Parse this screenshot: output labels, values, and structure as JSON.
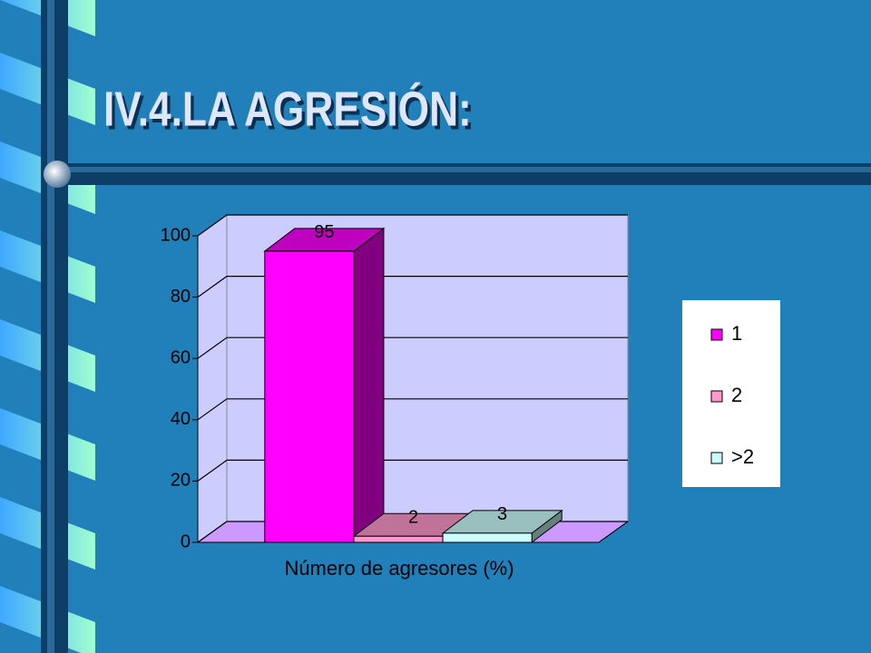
{
  "chart_data": {
    "type": "bar3d",
    "title": "IV.4.LA AGRESIÓN:",
    "x_label": "Número de agresores (%)",
    "categories": [
      null
    ],
    "series": [
      {
        "name": "1",
        "color": "#ff00ff",
        "values": [
          95
        ]
      },
      {
        "name": "2",
        "color": "#ff99cc",
        "values": [
          2
        ]
      },
      {
        "name": ">2",
        "color": "#ccffff",
        "values": [
          3
        ]
      }
    ],
    "ylim": [
      0,
      100
    ],
    "yticks": [
      0,
      20,
      40,
      60,
      80,
      100
    ],
    "grid": true,
    "legend": "right"
  }
}
